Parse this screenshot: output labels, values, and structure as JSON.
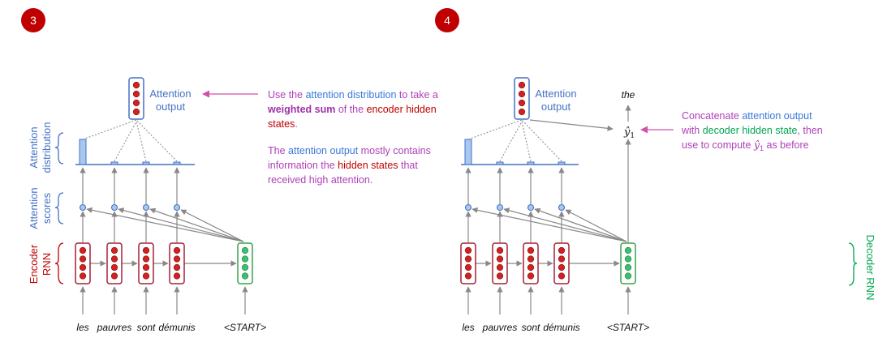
{
  "panels": [
    {
      "number": "3",
      "attention_output_label_line1": "Attention",
      "attention_output_label_line2": "output",
      "distribution_label_line1": "Attention",
      "distribution_label_line2": "distribution",
      "scores_label_line1": "Attention",
      "scores_label_line2": "scores",
      "encoder_label_line1": "Encoder",
      "encoder_label_line2": "RNN",
      "words": [
        "les",
        "pauvres",
        "sont",
        "démunis",
        "<START>"
      ],
      "annotation": {
        "line1_a": "Use the ",
        "line1_b": "attention distribution",
        "line1_c": " to take a",
        "line2_a": "weighted sum",
        "line2_b": " of the ",
        "line2_c": "encoder hidden",
        "line3": "states",
        "line3_end": ".",
        "line4_a": "The ",
        "line4_b": "attention output",
        "line4_c": " mostly contains",
        "line5_a": "information the ",
        "line5_b": "hidden states",
        "line5_c": " that",
        "line6": "received high attention."
      }
    },
    {
      "number": "4",
      "attention_output_label_line1": "Attention",
      "attention_output_label_line2": "output",
      "output_word": "the",
      "y_hat": "ŷ",
      "y_hat_sub": "1",
      "decoder_label": "Decoder RNN",
      "words": [
        "les",
        "pauvres",
        "sont",
        "démunis",
        "<START>"
      ],
      "annotation": {
        "line1_a": "Concatenate ",
        "line1_b": "attention output",
        "line2_a": "with ",
        "line2_b": "decoder hidden state",
        "line2_c": ", then",
        "line3_a": "use to compute ",
        "line3_b": "ŷ",
        "line3_c": "1",
        "line3_d": " as before"
      }
    }
  ],
  "attention_weights": [
    1.0,
    0.08,
    0.08,
    0.08
  ],
  "colors": {
    "badge": "#C00000",
    "encoder_border": "#A52038",
    "encoder_dot": "#D42020",
    "decoder_border": "#3AA04A",
    "decoder_dot": "#3CC070",
    "attention_blue": "#4472C4",
    "bar_fill": "#A8C8F0",
    "arrow_grey": "#888888",
    "annotation_arrow": "#D050A8"
  }
}
